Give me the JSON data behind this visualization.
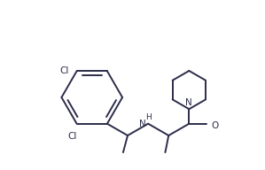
{
  "bg_color": "#ffffff",
  "line_color": "#2c2c4a",
  "line_width": 1.4,
  "figsize": [
    2.99,
    1.92
  ],
  "dpi": 100,
  "xlim": [
    0.0,
    10.0
  ],
  "ylim": [
    1.0,
    8.5
  ]
}
